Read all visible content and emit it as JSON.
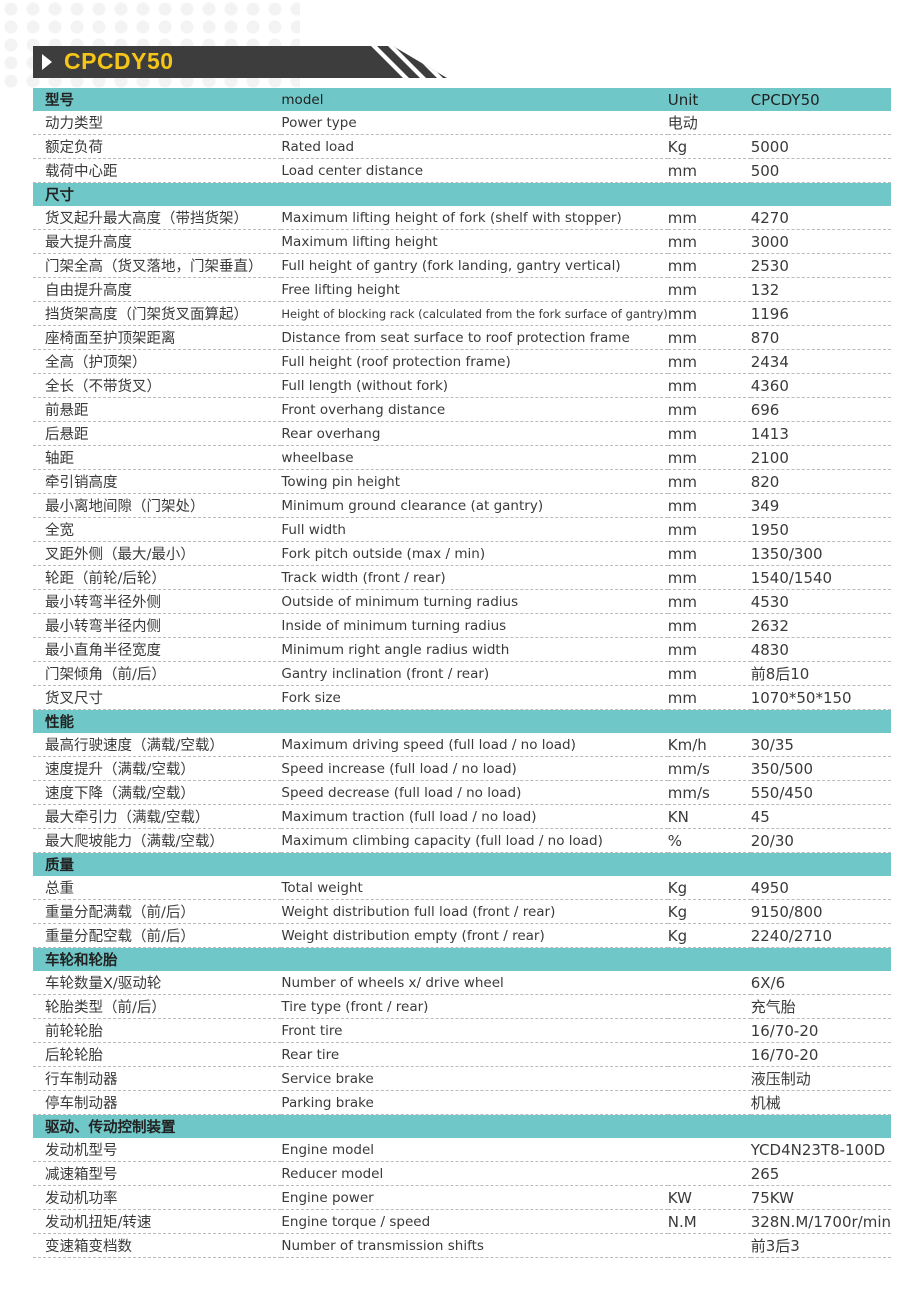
{
  "title": "CPCDY50",
  "rows": [
    {
      "type": "section",
      "cn": "型号",
      "en": "model",
      "unit": "Unit",
      "value": "CPCDY50"
    },
    {
      "cn": "动力类型",
      "en": "Power type",
      "unit": "电动",
      "value": ""
    },
    {
      "cn": "额定负荷",
      "en": "Rated load",
      "unit": "Kg",
      "value": "5000"
    },
    {
      "cn": "载荷中心距",
      "en": "Load center distance",
      "unit": "mm",
      "value": "500"
    },
    {
      "type": "section",
      "cn": "尺寸",
      "en": "",
      "unit": "",
      "value": ""
    },
    {
      "cn": "货叉起升最大高度（带挡货架）",
      "en": "Maximum lifting height of fork (shelf with stopper)",
      "unit": "mm",
      "value": "4270"
    },
    {
      "cn": "最大提升高度",
      "en": "Maximum lifting height",
      "unit": "mm",
      "value": "3000"
    },
    {
      "cn": "门架全高（货叉落地，门架垂直）",
      "en": "Full height of gantry (fork landing, gantry vertical)",
      "unit": "mm",
      "value": "2530"
    },
    {
      "cn": "自由提升高度",
      "en": "Free lifting height",
      "unit": "mm",
      "value": "132"
    },
    {
      "cn": "挡货架高度（门架货叉面算起）",
      "en": "Height of blocking rack (calculated from the fork surface of gantry)",
      "unit": "mm",
      "value": "1196",
      "small": true
    },
    {
      "cn": "座椅面至护顶架距离",
      "en": "Distance from seat surface to roof protection frame",
      "unit": "mm",
      "value": "870"
    },
    {
      "cn": "全高（护顶架）",
      "en": "Full height (roof protection frame)",
      "unit": "mm",
      "value": "2434"
    },
    {
      "cn": "全长（不带货叉）",
      "en": "Full length (without fork)",
      "unit": "mm",
      "value": "4360"
    },
    {
      "cn": "前悬距",
      "en": "Front overhang distance",
      "unit": "mm",
      "value": "696"
    },
    {
      "cn": "后悬距",
      "en": "Rear overhang",
      "unit": "mm",
      "value": "1413"
    },
    {
      "cn": "轴距",
      "en": "wheelbase",
      "unit": "mm",
      "value": "2100"
    },
    {
      "cn": "牵引销高度",
      "en": "Towing pin height",
      "unit": "mm",
      "value": "820"
    },
    {
      "cn": "最小离地间隙（门架处）",
      "en": "Minimum ground clearance (at gantry)",
      "unit": "mm",
      "value": "349"
    },
    {
      "cn": "全宽",
      "en": "Full width",
      "unit": "mm",
      "value": "1950"
    },
    {
      "cn": "叉距外侧（最大/最小）",
      "en": "Fork pitch outside (max / min)",
      "unit": "mm",
      "value": "1350/300"
    },
    {
      "cn": "轮距（前轮/后轮）",
      "en": "Track width (front / rear)",
      "unit": "mm",
      "value": "1540/1540"
    },
    {
      "cn": "最小转弯半径外侧",
      "en": "Outside of minimum turning radius",
      "unit": "mm",
      "value": "4530"
    },
    {
      "cn": "最小转弯半径内侧",
      "en": "Inside of minimum turning radius",
      "unit": "mm",
      "value": "2632"
    },
    {
      "cn": "最小直角半径宽度",
      "en": "Minimum right angle radius width",
      "unit": "mm",
      "value": "4830"
    },
    {
      "cn": "门架倾角（前/后）",
      "en": "Gantry inclination (front / rear)",
      "unit": "mm",
      "value": "前8后10"
    },
    {
      "cn": "货叉尺寸",
      "en": "Fork size",
      "unit": "mm",
      "value": "1070*50*150"
    },
    {
      "type": "section",
      "cn": "性能",
      "en": "",
      "unit": "",
      "value": ""
    },
    {
      "cn": "最高行驶速度（满载/空载）",
      "en": "Maximum driving speed (full load / no load)",
      "unit": "Km/h",
      "value": "30/35"
    },
    {
      "cn": "速度提升（满载/空载）",
      "en": "Speed increase (full load / no load)",
      "unit": "mm/s",
      "value": "350/500"
    },
    {
      "cn": "速度下降（满载/空载）",
      "en": "Speed decrease (full load / no load)",
      "unit": "mm/s",
      "value": "550/450"
    },
    {
      "cn": "最大牵引力（满载/空载）",
      "en": "Maximum traction (full load / no load)",
      "unit": "KN",
      "value": "45"
    },
    {
      "cn": "最大爬坡能力（满载/空载）",
      "en": "Maximum climbing capacity (full load / no load)",
      "unit": "%",
      "value": "20/30"
    },
    {
      "type": "section",
      "cn": "质量",
      "en": "",
      "unit": "",
      "value": ""
    },
    {
      "cn": "总重",
      "en": "Total weight",
      "unit": "Kg",
      "value": "4950"
    },
    {
      "cn": "重量分配满载（前/后）",
      "en": "Weight distribution full load (front / rear)",
      "unit": "Kg",
      "value": "9150/800"
    },
    {
      "cn": "重量分配空载（前/后）",
      "en": "Weight distribution empty (front / rear)",
      "unit": "Kg",
      "value": "2240/2710"
    },
    {
      "type": "section",
      "cn": "车轮和轮胎",
      "en": "",
      "unit": "",
      "value": ""
    },
    {
      "cn": "车轮数量X/驱动轮",
      "en": "Number of wheels x/ drive wheel",
      "unit": "",
      "value": "6X/6"
    },
    {
      "cn": "轮胎类型（前/后）",
      "en": "Tire type (front / rear)",
      "unit": "",
      "value": "充气胎"
    },
    {
      "cn": "前轮轮胎",
      "en": "Front tire",
      "unit": "",
      "value": "16/70-20"
    },
    {
      "cn": "后轮轮胎",
      "en": "Rear tire",
      "unit": "",
      "value": "16/70-20"
    },
    {
      "cn": "行车制动器",
      "en": "Service brake",
      "unit": "",
      "value": "液压制动"
    },
    {
      "cn": "停车制动器",
      "en": "Parking brake",
      "unit": "",
      "value": "机械"
    },
    {
      "type": "section",
      "cn": "驱动、传动控制装置",
      "en": "",
      "unit": "",
      "value": ""
    },
    {
      "cn": "发动机型号",
      "en": "Engine model",
      "unit": "",
      "value": "YCD4N23T8-100D"
    },
    {
      "cn": "减速箱型号",
      "en": "Reducer model",
      "unit": "",
      "value": "265"
    },
    {
      "cn": "发动机功率",
      "en": "Engine power",
      "unit": "KW",
      "value": "75KW"
    },
    {
      "cn": "发动机扭矩/转速",
      "en": "Engine torque / speed",
      "unit": "N.M",
      "value": "328N.M/1700r/min"
    },
    {
      "cn": "变速箱变档数",
      "en": "Number of transmission shifts",
      "unit": "",
      "value": "前3后3"
    }
  ]
}
